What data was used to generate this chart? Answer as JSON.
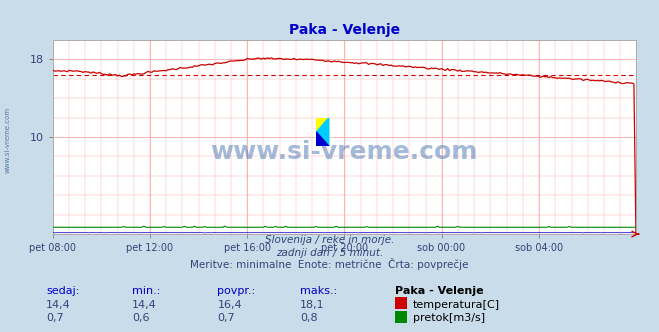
{
  "title": "Paka - Velenje",
  "title_color": "#0000cc",
  "bg_color": "#c8dcea",
  "plot_bg_color": "#ffffff",
  "grid_color": "#ffaaaa",
  "x_tick_labels": [
    "pet 08:00",
    "pet 12:00",
    "pet 16:00",
    "pet 20:00",
    "sob 00:00",
    "sob 04:00"
  ],
  "x_ticks_norm": [
    0.0,
    0.1667,
    0.3333,
    0.5,
    0.6667,
    0.8333
  ],
  "y_min": 0,
  "y_max": 20,
  "y_ticks": [
    10,
    18
  ],
  "y_tick_labels": [
    "10",
    "18"
  ],
  "temp_avg": 16.4,
  "temp_color": "#cc0000",
  "flow_color": "#008800",
  "height_color": "#0000cc",
  "subtitle_lines": [
    "Slovenija / reke in morje.",
    "zadnji dan / 5 minut.",
    "Meritve: minimalne  Enote: metrične  Črta: povprečje"
  ],
  "table_headers": [
    "sedaj:",
    "min.:",
    "povpr.:",
    "maks.:",
    "Paka - Velenje"
  ],
  "table_row1_vals": [
    "14,4",
    "14,4",
    "16,4",
    "18,1"
  ],
  "table_row2_vals": [
    "0,7",
    "0,6",
    "0,7",
    "0,8"
  ],
  "table_row1_label": "temperatura[C]",
  "table_row2_label": "pretok[m3/s]",
  "legend_color1": "#cc0000",
  "legend_color2": "#008800",
  "watermark": "www.si-vreme.com",
  "watermark_color": "#3366aa",
  "side_label": "www.si-vreme.com",
  "text_color": "#334477",
  "header_color": "#0000cc"
}
